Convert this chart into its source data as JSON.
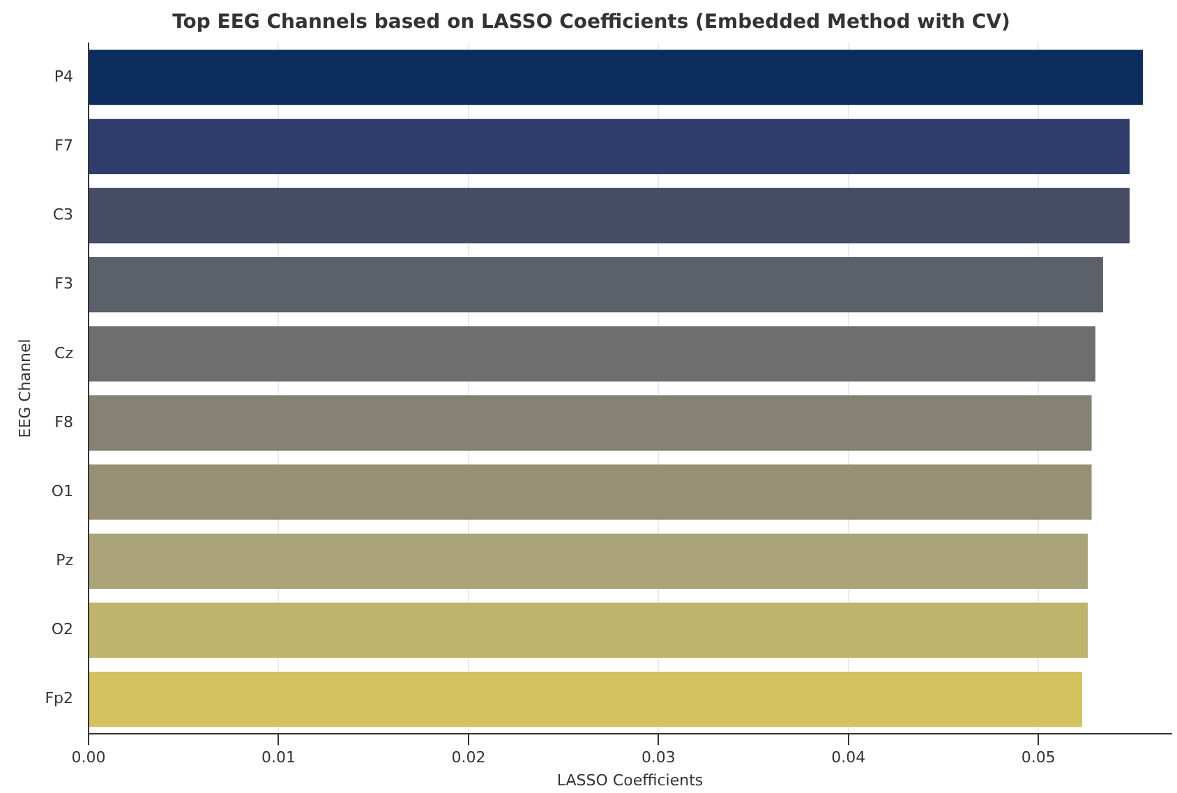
{
  "chart_data": {
    "type": "bar",
    "orientation": "horizontal",
    "title": "Top EEG Channels based on LASSO Coefficients (Embedded Method with CV)",
    "xlabel": "LASSO Coefficients",
    "ylabel": "EEG Channel",
    "categories": [
      "P4",
      "F7",
      "C3",
      "F3",
      "Cz",
      "F8",
      "O1",
      "Pz",
      "O2",
      "Fp2"
    ],
    "values": [
      0.0555,
      0.0548,
      0.0548,
      0.0534,
      0.053,
      0.0528,
      0.0528,
      0.0526,
      0.0526,
      0.0523
    ],
    "colors": [
      "#0d2c5e",
      "#2e3d6b",
      "#464c66",
      "#5c6068",
      "#6e6e6e",
      "#858273",
      "#979074",
      "#aba37a",
      "#c0b46c",
      "#d4c25e"
    ],
    "xlim": [
      0,
      0.057
    ],
    "xticks": [
      {
        "value": 0,
        "label": "0.00"
      },
      {
        "value": 0.01,
        "label": "0.01"
      },
      {
        "value": 0.02,
        "label": "0.02"
      },
      {
        "value": 0.03,
        "label": "0.03"
      },
      {
        "value": 0.04,
        "label": "0.04"
      },
      {
        "value": 0.05,
        "label": "0.05"
      }
    ],
    "grid": "x",
    "legend": false
  }
}
